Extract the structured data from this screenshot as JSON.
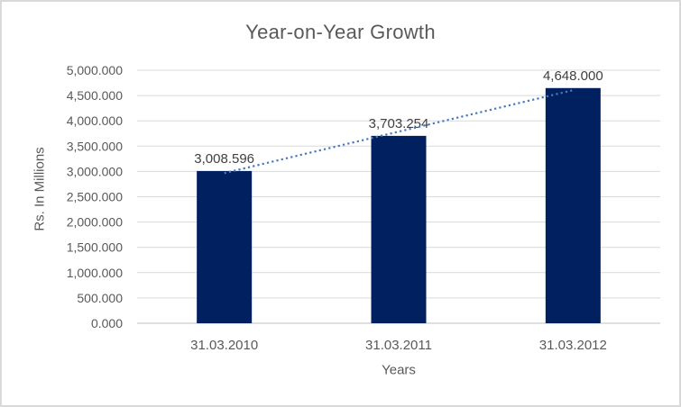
{
  "chart_data": {
    "type": "bar",
    "title": "Year-on-Year Growth",
    "categories": [
      "31.03.2010",
      "31.03.2011",
      "31.03.2012"
    ],
    "values": [
      3008.596,
      3703.254,
      4648.0
    ],
    "data_labels": [
      "3,008.596",
      "3,703.254",
      "4,648.000"
    ],
    "xlabel": "Years",
    "ylabel": "Rs. In Millions",
    "ylim": [
      0,
      5000
    ],
    "ytick_step": 500,
    "ytick_labels": [
      "0.000",
      "500.000",
      "1,000.000",
      "1,500.000",
      "2,000.000",
      "2,500.000",
      "3,000.000",
      "3,500.000",
      "4,000.000",
      "4,500.000",
      "5,000.000"
    ],
    "grid": true,
    "legend": "none",
    "trendline": {
      "type": "linear",
      "style": "dotted",
      "endpoint_values": [
        2967,
        4606
      ],
      "color": "#4678be"
    },
    "colors": {
      "bar": "#002060",
      "gridline": "#d9d9d9",
      "axis_line": "#bfbfbf",
      "tick_text": "#595959",
      "data_label_text": "#404040",
      "title_text": "#595959"
    }
  }
}
